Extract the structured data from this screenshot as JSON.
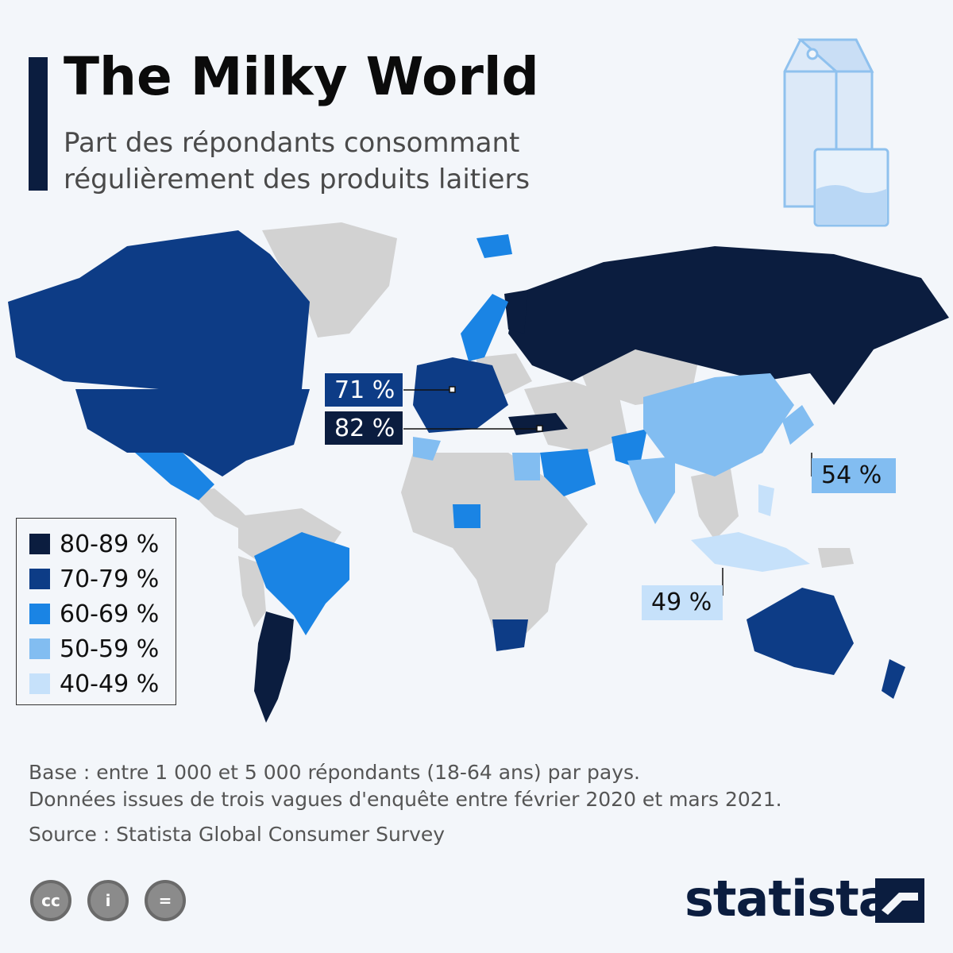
{
  "title": "The Milky World",
  "subtitle_line1": "Part des répondants consommant",
  "subtitle_line2": "régulièrement des produits laitiers",
  "callouts": {
    "uk": "71 %",
    "turkey": "82 %",
    "japan": "54 %",
    "indonesia": "49 %"
  },
  "legend": [
    {
      "label": "80-89 %",
      "color": "#0b1d3f"
    },
    {
      "label": "70-79 %",
      "color": "#0d3c86"
    },
    {
      "label": "60-69 %",
      "color": "#1a84e4"
    },
    {
      "label": "50-59 %",
      "color": "#82bdf1"
    },
    {
      "label": "40-49 %",
      "color": "#c6e1fa"
    }
  ],
  "colors": {
    "no_data": "#d2d2d2",
    "ocean": "#f3f6fa"
  },
  "footnotes": {
    "base": "Base : entre 1 000 et 5 000 répondants (18-64 ans) par pays.",
    "data": "Données issues de trois vagues d'enquête entre février 2020 et mars 2021.",
    "source": "Source : Statista Global Consumer Survey"
  },
  "license_icons": [
    "cc-icon",
    "attribution-icon",
    "no-derivatives-icon"
  ],
  "license_glyphs": [
    "cc",
    "i",
    "="
  ],
  "brand": "statista"
}
